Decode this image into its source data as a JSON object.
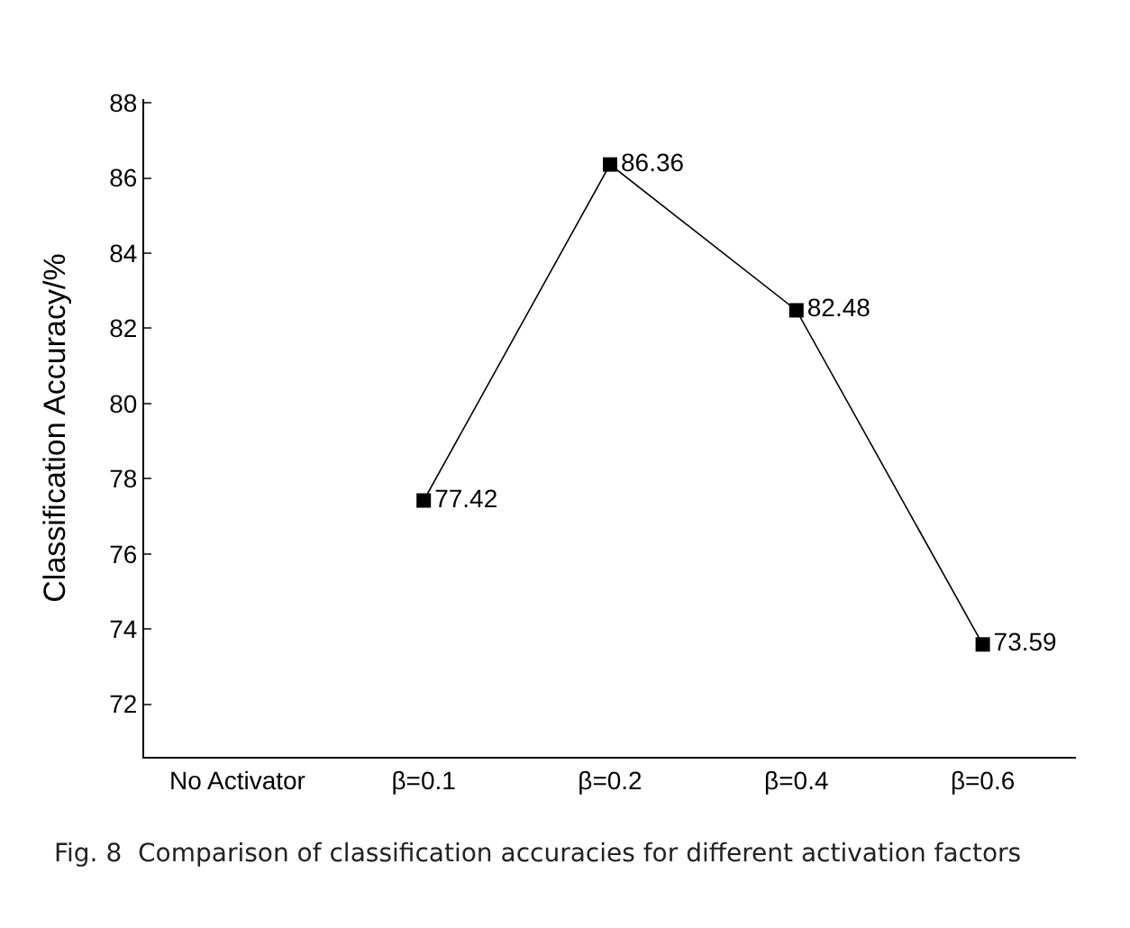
{
  "chart_data": {
    "type": "line",
    "ylabel": "Classification Accuracy/%",
    "categories": [
      "No Activator",
      "β=0.1",
      "β=0.2",
      "β=0.4",
      "β=0.6"
    ],
    "values": [
      null,
      77.42,
      86.36,
      82.48,
      73.59
    ],
    "color": "#000000",
    "marker": "square",
    "line_style": "solid",
    "data_labels": true,
    "ylim": [
      70.6,
      88.1
    ],
    "yticks": [
      72,
      74,
      76,
      78,
      80,
      82,
      84,
      86,
      88
    ],
    "grid": false,
    "legend": false,
    "annotations": [
      "Fig. 8  Comparison of classification accuracies for different activation factors"
    ]
  }
}
